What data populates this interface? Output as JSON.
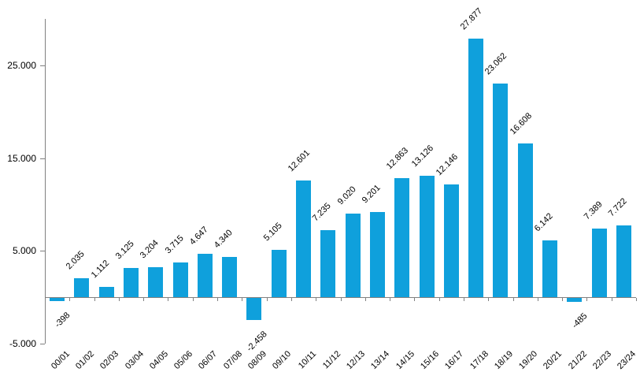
{
  "chart_data": {
    "type": "bar",
    "title": "",
    "xlabel": "",
    "ylabel": "",
    "categories": [
      "00/01",
      "01/02",
      "02/03",
      "03/04",
      "04/05",
      "05/06",
      "06/07",
      "07/08",
      "08/09",
      "09/10",
      "10/11",
      "11/12",
      "12/13",
      "13/14",
      "14/15",
      "15/16",
      "16/17",
      "17/18",
      "18/19",
      "19/20",
      "20/21",
      "21/22",
      "22/23",
      "23/24"
    ],
    "values": [
      -398,
      2035,
      1112,
      3125,
      3204,
      3715,
      4647,
      4340,
      -2458,
      5105,
      12601,
      7235,
      9020,
      9201,
      12863,
      13126,
      12146,
      27877,
      23062,
      16608,
      6142,
      -485,
      7389,
      7722
    ],
    "labels": [
      "-398",
      "2.035",
      "1.112",
      "3.125",
      "3.204",
      "3.715",
      "4.647",
      "4.340",
      "-2.458",
      "5.105",
      "12.601",
      "7.235",
      "9.020",
      "9.201",
      "12.863",
      "13.126",
      "12.146",
      "27.877",
      "23.062",
      "16.608",
      "6.142",
      "-485",
      "7.389",
      "7.722"
    ],
    "yticks": [
      {
        "value": 25000,
        "label": "25.000"
      },
      {
        "value": 15000,
        "label": "15.000"
      },
      {
        "value": 5000,
        "label": "5.000"
      },
      {
        "value": -5000,
        "label": "-5.000"
      }
    ],
    "ylim": [
      -5000,
      30000
    ],
    "grid": false,
    "legend_position": "none",
    "x_label_rotation_deg": 45,
    "value_label_rotation_deg": 45,
    "number_format": "thousands-dot",
    "colors": {
      "bar": "#0FA0DC",
      "axis": "#808080",
      "label": "#000000",
      "background": "#FFFFFF"
    }
  }
}
